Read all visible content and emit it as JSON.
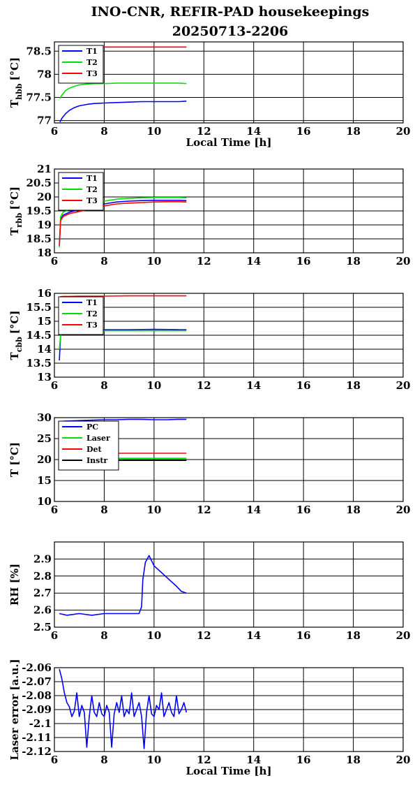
{
  "title_line1": "INO-CNR, REFIR-PAD housekeepings",
  "title_line2": "20250713-2206",
  "colors": {
    "blue": "#0000ff",
    "green": "#00dd00",
    "red": "#ff0000",
    "black": "#000000"
  },
  "chart_data": [
    {
      "type": "line",
      "ylabel": "T",
      "ylabel_sub": "hbb",
      "ylabel_unit": "[°C]",
      "xlabel": "Local Time [h]",
      "xlim": [
        6,
        20
      ],
      "ylim": [
        76.95,
        78.7
      ],
      "xticks": [
        "6",
        "8",
        "10",
        "12",
        "14",
        "16",
        "18",
        "20"
      ],
      "yticks": [
        {
          "v": 77,
          "label": "77"
        },
        {
          "v": 77.5,
          "label": "77.5"
        },
        {
          "v": 78,
          "label": "78"
        },
        {
          "v": 78.5,
          "label": "78.5"
        }
      ],
      "grid": true,
      "legend": "top-left",
      "series": [
        {
          "name": "T1",
          "color": "#0000ff",
          "x": [
            6.22,
            6.3,
            6.45,
            6.6,
            6.8,
            7.0,
            7.3,
            7.6,
            8.0,
            8.5,
            9.0,
            9.5,
            10.0,
            10.5,
            11.0,
            11.3
          ],
          "y": [
            76.97,
            77.05,
            77.15,
            77.22,
            77.28,
            77.32,
            77.35,
            77.37,
            77.38,
            77.39,
            77.4,
            77.41,
            77.41,
            77.41,
            77.41,
            77.42
          ]
        },
        {
          "name": "T2",
          "color": "#00dd00",
          "x": [
            6.22,
            6.3,
            6.45,
            6.6,
            6.8,
            7.0,
            7.3,
            7.6,
            8.0,
            8.5,
            9.0,
            9.5,
            10.0,
            10.5,
            11.0,
            11.3
          ],
          "y": [
            77.48,
            77.55,
            77.65,
            77.7,
            77.74,
            77.77,
            77.79,
            77.8,
            77.8,
            77.81,
            77.81,
            77.81,
            77.81,
            77.81,
            77.81,
            77.8
          ]
        },
        {
          "name": "T3",
          "color": "#ff0000",
          "x": [
            6.22,
            6.5,
            7.0,
            7.5,
            8.0,
            8.5,
            9.0,
            9.5,
            10.0,
            10.5,
            11.0,
            11.3
          ],
          "y": [
            78.56,
            78.57,
            78.58,
            78.58,
            78.59,
            78.59,
            78.59,
            78.59,
            78.59,
            78.59,
            78.59,
            78.59
          ]
        }
      ]
    },
    {
      "type": "line",
      "ylabel": "T",
      "ylabel_sub": "rbb",
      "ylabel_unit": "[°C]",
      "xlabel": "",
      "xlim": [
        6,
        20
      ],
      "ylim": [
        18,
        21
      ],
      "xticks": [
        "6",
        "8",
        "10",
        "12",
        "14",
        "16",
        "18",
        "20"
      ],
      "yticks": [
        {
          "v": 18,
          "label": "18"
        },
        {
          "v": 18.5,
          "label": "18.5"
        },
        {
          "v": 19,
          "label": "19"
        },
        {
          "v": 19.5,
          "label": "19.5"
        },
        {
          "v": 20,
          "label": "20"
        },
        {
          "v": 20.5,
          "label": "20.5"
        },
        {
          "v": 21,
          "label": "21"
        }
      ],
      "grid": true,
      "legend": "top-left",
      "series": [
        {
          "name": "T1",
          "color": "#0000ff",
          "x": [
            6.2,
            6.25,
            6.35,
            6.6,
            7.0,
            7.5,
            8.0,
            8.5,
            9.0,
            9.5,
            10.0,
            10.5,
            11.0,
            11.3
          ],
          "y": [
            18.3,
            19.2,
            19.35,
            19.45,
            19.55,
            19.65,
            19.75,
            19.82,
            19.85,
            19.87,
            19.88,
            19.88,
            19.88,
            19.87
          ]
        },
        {
          "name": "T2",
          "color": "#00dd00",
          "x": [
            6.2,
            6.25,
            6.35,
            6.6,
            7.0,
            7.5,
            8.0,
            8.5,
            9.0,
            9.5,
            10.0,
            10.5,
            11.0,
            11.3
          ],
          "y": [
            18.2,
            19.3,
            19.45,
            19.55,
            19.62,
            19.72,
            19.85,
            19.92,
            19.95,
            19.97,
            19.98,
            19.98,
            19.98,
            19.97
          ]
        },
        {
          "name": "T3",
          "color": "#ff0000",
          "x": [
            6.2,
            6.25,
            6.35,
            6.6,
            7.0,
            7.5,
            8.0,
            8.5,
            9.0,
            9.5,
            10.0,
            10.5,
            11.0,
            11.3
          ],
          "y": [
            18.25,
            19.15,
            19.3,
            19.4,
            19.48,
            19.58,
            19.68,
            19.75,
            19.78,
            19.8,
            19.82,
            19.83,
            19.83,
            19.82
          ]
        }
      ]
    },
    {
      "type": "line",
      "ylabel": "T",
      "ylabel_sub": "cbb",
      "ylabel_unit": "[°C]",
      "xlabel": "",
      "xlim": [
        6,
        20
      ],
      "ylim": [
        13,
        16
      ],
      "xticks": [
        "6",
        "8",
        "10",
        "12",
        "14",
        "16",
        "18",
        "20"
      ],
      "yticks": [
        {
          "v": 13,
          "label": "13"
        },
        {
          "v": 13.5,
          "label": "13.5"
        },
        {
          "v": 14,
          "label": "14"
        },
        {
          "v": 14.5,
          "label": "14.5"
        },
        {
          "v": 15,
          "label": "15"
        },
        {
          "v": 15.5,
          "label": "15.5"
        },
        {
          "v": 16,
          "label": "16"
        }
      ],
      "grid": true,
      "legend": "top-left",
      "series": [
        {
          "name": "T1",
          "color": "#0000ff",
          "x": [
            6.2,
            6.25,
            6.35,
            6.6,
            7.0,
            8.0,
            9.0,
            10.0,
            11.0,
            11.3
          ],
          "y": [
            13.6,
            14.5,
            14.68,
            14.7,
            14.7,
            14.7,
            14.7,
            14.71,
            14.7,
            14.7
          ]
        },
        {
          "name": "T2",
          "color": "#00dd00",
          "x": [
            6.2,
            6.25,
            6.35,
            6.6,
            7.0,
            8.0,
            9.0,
            10.0,
            11.0,
            11.3
          ],
          "y": [
            14.0,
            14.5,
            14.65,
            14.66,
            14.66,
            14.66,
            14.66,
            14.66,
            14.66,
            14.66
          ]
        },
        {
          "name": "T3",
          "color": "#ff0000",
          "x": [
            6.2,
            6.25,
            6.35,
            6.6,
            7.0,
            8.0,
            9.0,
            10.0,
            11.0,
            11.3
          ],
          "y": [
            15.85,
            15.88,
            15.89,
            15.89,
            15.9,
            15.9,
            15.91,
            15.91,
            15.91,
            15.91
          ]
        }
      ]
    },
    {
      "type": "line",
      "ylabel": "T [°C]",
      "ylabel_sub": "",
      "ylabel_unit": "",
      "xlabel": "",
      "xlim": [
        6,
        20
      ],
      "ylim": [
        10,
        30
      ],
      "xticks": [
        "6",
        "8",
        "10",
        "12",
        "14",
        "16",
        "18",
        "20"
      ],
      "yticks": [
        {
          "v": 10,
          "label": "10"
        },
        {
          "v": 15,
          "label": "15"
        },
        {
          "v": 20,
          "label": "20"
        },
        {
          "v": 25,
          "label": "25"
        },
        {
          "v": 30,
          "label": "30"
        }
      ],
      "grid": true,
      "legend": "top-left",
      "series": [
        {
          "name": "PC",
          "color": "#0000ff",
          "x": [
            6.2,
            6.5,
            7.0,
            7.5,
            8.0,
            8.5,
            9.0,
            9.5,
            10.0,
            10.5,
            11.0,
            11.3
          ],
          "y": [
            29.1,
            29.2,
            29.3,
            29.4,
            29.5,
            29.5,
            29.6,
            29.6,
            29.5,
            29.5,
            29.6,
            29.6
          ]
        },
        {
          "name": "Laser",
          "color": "#00dd00",
          "x": [
            6.2,
            7.0,
            8.0,
            9.0,
            10.0,
            11.0,
            11.3
          ],
          "y": [
            20.3,
            20.3,
            20.3,
            20.3,
            20.3,
            20.3,
            20.3
          ]
        },
        {
          "name": "Det",
          "color": "#ff0000",
          "x": [
            6.2,
            7.0,
            8.0,
            9.0,
            10.0,
            11.0,
            11.3
          ],
          "y": [
            21.5,
            21.5,
            21.5,
            21.5,
            21.5,
            21.5,
            21.5
          ]
        },
        {
          "name": "Instr",
          "color": "#000000",
          "x": [
            6.2,
            7.0,
            8.0,
            9.0,
            10.0,
            11.0,
            11.3
          ],
          "y": [
            19.8,
            19.8,
            19.8,
            19.8,
            19.8,
            19.8,
            19.8
          ]
        }
      ]
    },
    {
      "type": "line",
      "ylabel": "RH [%]",
      "ylabel_sub": "",
      "ylabel_unit": "",
      "xlabel": "",
      "xlim": [
        6,
        20
      ],
      "ylim": [
        2.5,
        3.0
      ],
      "xticks": [
        "6",
        "8",
        "10",
        "12",
        "14",
        "16",
        "18",
        "20"
      ],
      "yticks": [
        {
          "v": 2.5,
          "label": "2.5"
        },
        {
          "v": 2.6,
          "label": "2.6"
        },
        {
          "v": 2.7,
          "label": "2.7"
        },
        {
          "v": 2.8,
          "label": "2.8"
        },
        {
          "v": 2.9,
          "label": "2.9"
        }
      ],
      "grid": true,
      "legend": "",
      "series": [
        {
          "name": "",
          "color": "#0000ff",
          "x": [
            6.2,
            6.5,
            7.0,
            7.5,
            8.0,
            8.5,
            9.0,
            9.4,
            9.5,
            9.55,
            9.65,
            9.8,
            10.0,
            10.3,
            10.6,
            10.9,
            11.1,
            11.3
          ],
          "y": [
            2.58,
            2.57,
            2.58,
            2.57,
            2.58,
            2.58,
            2.58,
            2.58,
            2.62,
            2.78,
            2.88,
            2.92,
            2.86,
            2.82,
            2.78,
            2.74,
            2.71,
            2.7
          ]
        }
      ]
    },
    {
      "type": "line",
      "ylabel": "Laser error [a.u.]",
      "ylabel_sub": "",
      "ylabel_unit": "",
      "xlabel": "Local Time [h]",
      "xlim": [
        6,
        20
      ],
      "ylim": [
        -2.12,
        -2.06
      ],
      "xticks": [
        "6",
        "8",
        "10",
        "12",
        "14",
        "16",
        "18",
        "20"
      ],
      "yticks": [
        {
          "v": -2.12,
          "label": "-2.12"
        },
        {
          "v": -2.11,
          "label": "-2.11"
        },
        {
          "v": -2.1,
          "label": "-2.1"
        },
        {
          "v": -2.09,
          "label": "-2.09"
        },
        {
          "v": -2.08,
          "label": "-2.08"
        },
        {
          "v": -2.07,
          "label": "-2.07"
        },
        {
          "v": -2.06,
          "label": "-2.06"
        }
      ],
      "grid": true,
      "legend": "",
      "series": [
        {
          "name": "",
          "color": "#0000ff",
          "x": [
            6.2,
            6.3,
            6.4,
            6.5,
            6.6,
            6.7,
            6.8,
            6.9,
            7.0,
            7.1,
            7.2,
            7.3,
            7.4,
            7.5,
            7.6,
            7.7,
            7.8,
            7.9,
            8.0,
            8.1,
            8.2,
            8.3,
            8.4,
            8.5,
            8.6,
            8.7,
            8.8,
            8.9,
            9.0,
            9.1,
            9.2,
            9.3,
            9.4,
            9.5,
            9.6,
            9.7,
            9.8,
            9.9,
            10.0,
            10.1,
            10.2,
            10.3,
            10.4,
            10.5,
            10.6,
            10.7,
            10.8,
            10.9,
            11.0,
            11.1,
            11.2,
            11.3
          ],
          "y": [
            -2.061,
            -2.068,
            -2.078,
            -2.085,
            -2.088,
            -2.095,
            -2.091,
            -2.078,
            -2.095,
            -2.087,
            -2.092,
            -2.117,
            -2.095,
            -2.08,
            -2.092,
            -2.095,
            -2.085,
            -2.093,
            -2.095,
            -2.087,
            -2.092,
            -2.117,
            -2.093,
            -2.085,
            -2.092,
            -2.08,
            -2.095,
            -2.09,
            -2.093,
            -2.078,
            -2.095,
            -2.09,
            -2.085,
            -2.095,
            -2.118,
            -2.092,
            -2.08,
            -2.093,
            -2.095,
            -2.087,
            -2.09,
            -2.078,
            -2.095,
            -2.09,
            -2.085,
            -2.092,
            -2.095,
            -2.08,
            -2.093,
            -2.09,
            -2.085,
            -2.092
          ]
        }
      ]
    }
  ]
}
